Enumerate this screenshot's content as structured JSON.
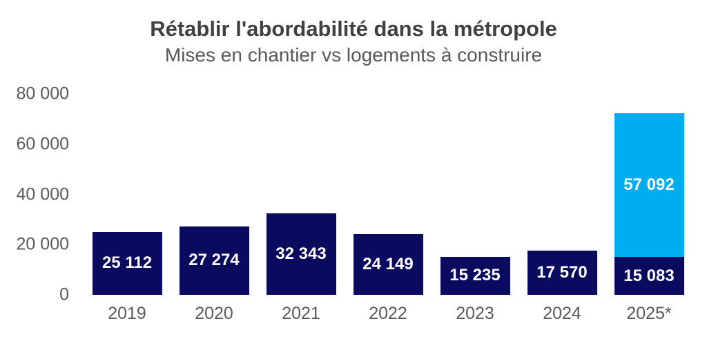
{
  "header": {
    "title": "Rétablir l'abordabilité dans la métropole",
    "subtitle": "Mises en chantier vs logements à construire"
  },
  "chart_data": {
    "type": "bar",
    "stacked": true,
    "title": "Rétablir l'abordabilité dans la métropole",
    "subtitle": "Mises en chantier vs logements à construire",
    "categories": [
      "2019",
      "2020",
      "2021",
      "2022",
      "2023",
      "2024",
      "2025*"
    ],
    "series": [
      {
        "name": "Mises en chantier",
        "color": "#0A0A5E",
        "values": [
          25112,
          27274,
          32343,
          24149,
          15235,
          17570,
          15083
        ],
        "labels": [
          "25 112",
          "27 274",
          "32 343",
          "24 149",
          "15 235",
          "17 570",
          "15 083"
        ]
      },
      {
        "name": "Logements à construire",
        "color": "#00AEEF",
        "values": [
          0,
          0,
          0,
          0,
          0,
          0,
          57092
        ],
        "labels": [
          "",
          "",
          "",
          "",
          "",
          "",
          "57 092"
        ]
      }
    ],
    "ylim": [
      0,
      80000
    ],
    "yticks": [
      {
        "value": 0,
        "label": "0"
      },
      {
        "value": 20000,
        "label": "20 000"
      },
      {
        "value": 40000,
        "label": "40 000"
      },
      {
        "value": 60000,
        "label": "60 000"
      },
      {
        "value": 80000,
        "label": "80 000"
      }
    ],
    "grid": false,
    "legend": null,
    "bar_label_color": "#FFFFFF",
    "axis_text_color": "#595959"
  }
}
